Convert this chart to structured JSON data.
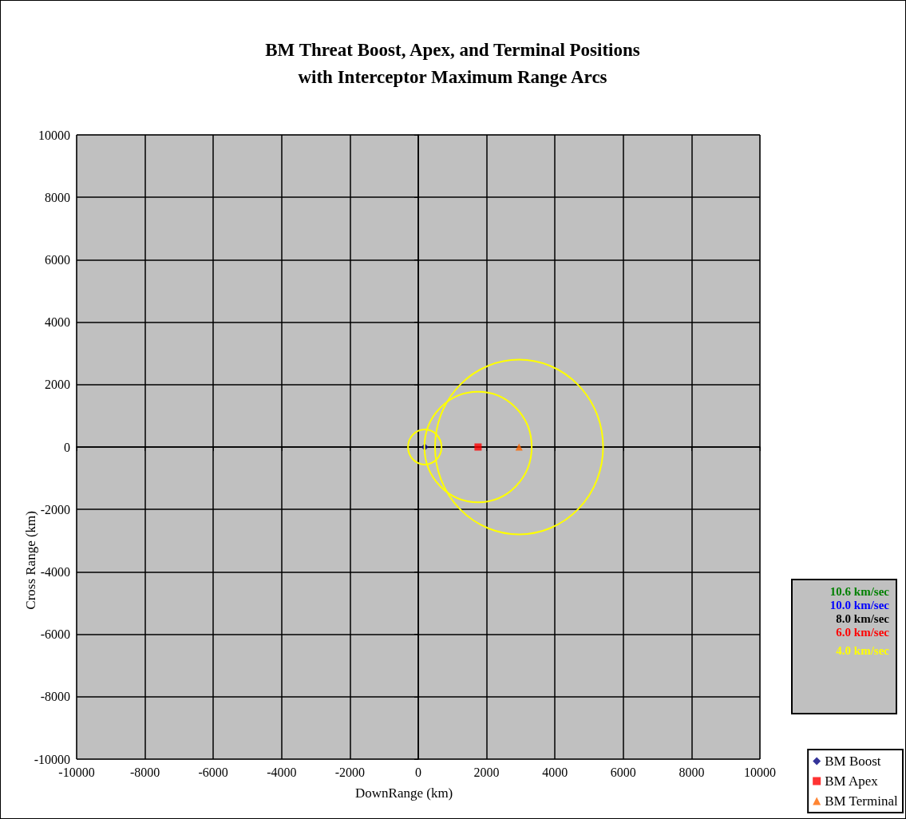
{
  "chart_data": {
    "type": "scatter",
    "title": "BM Threat Boost, Apex, and Terminal Positions\nwith Interceptor Maximum Range Arcs",
    "xlabel": "DownRange (km)",
    "ylabel": "Cross Range (km)",
    "xlim": [
      -10000,
      10000
    ],
    "xticks": [
      -10000,
      -8000,
      -6000,
      -4000,
      -2000,
      0,
      2000,
      4000,
      6000,
      8000,
      10000
    ],
    "ylim": [
      -10000,
      10000
    ],
    "yticks": [
      -10000,
      -8000,
      -6000,
      -4000,
      -2000,
      0,
      2000,
      4000,
      6000,
      8000,
      10000
    ],
    "grid": true,
    "legend": "bottom right",
    "annotations": [
      "10.6 km/sec",
      "10.0 km/sec",
      "8.0 km/sec",
      "6.0 km/sec",
      "4.0 km/sec"
    ],
    "series": [
      {
        "name": "BM Boost",
        "marker": "diamond",
        "color": "#000080",
        "x": [
          190
        ],
        "values": [
          0
        ]
      },
      {
        "name": "BM Apex",
        "marker": "square",
        "color": "#ff0000",
        "x": [
          1750
        ],
        "values": [
          0
        ]
      },
      {
        "name": "BM Terminal",
        "marker": "triangle",
        "color": "#ff6600",
        "x": [
          2950
        ],
        "values": [
          0
        ]
      }
    ]
  }
}
